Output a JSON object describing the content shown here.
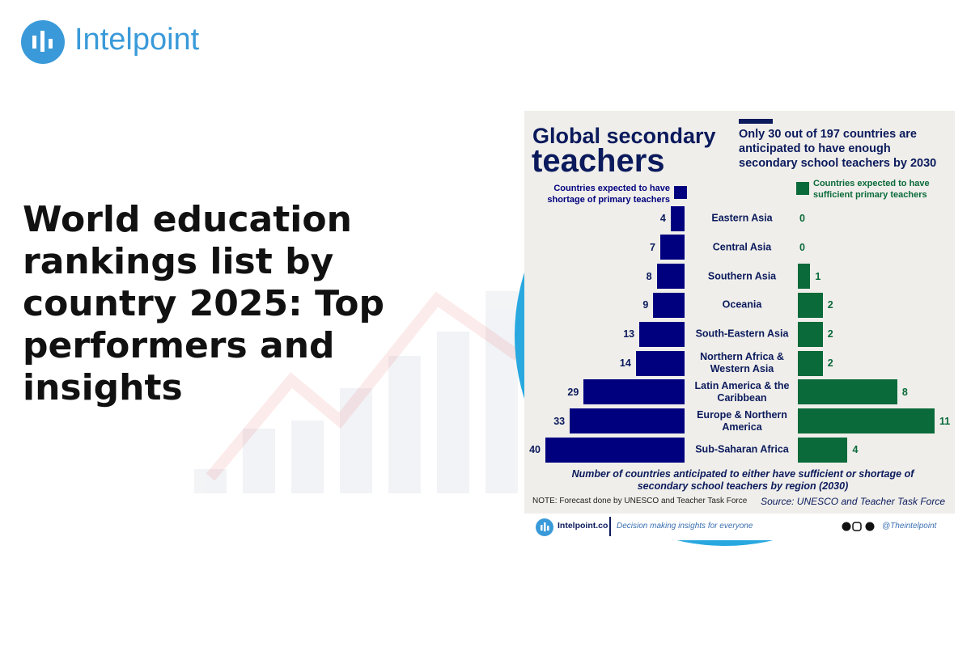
{
  "logo": "Intelpoint",
  "headline": "World education rankings list by country 2025: Top performers and insights",
  "chart_data": {
    "type": "butterfly",
    "title_lines": [
      "Global secondary",
      "teachers"
    ],
    "subtitle": "Only 30 out of 197 countries are anticipated to have enough secondary school teachers by 2030",
    "categories": [
      "Eastern Asia",
      "Central Asia",
      "Southern Asia",
      "Oceania",
      "South-Eastern Asia",
      "Northern Africa & Western Asia",
      "Latin America & the Caribbean",
      "Europe & Northern America",
      "Sub-Saharan Africa"
    ],
    "series": [
      {
        "name": "Countries expected to have shortage of primary teachers",
        "color": "#00007f",
        "values": [
          4,
          7,
          8,
          9,
          13,
          14,
          29,
          33,
          40
        ]
      },
      {
        "name": "Countries expected to have sufficient primary teachers",
        "color": "#0a6a3a",
        "values": [
          0,
          0,
          1,
          2,
          2,
          2,
          8,
          11,
          4
        ]
      }
    ],
    "caption": "Number of countries anticipated to either have sufficient or shortage of secondary school teachers by region (2030)",
    "note": "NOTE: Forecast done by UNESCO and Teacher Task Force",
    "source": "Source: UNESCO and Teacher Task Force",
    "footer": {
      "site": "Intelpoint.co",
      "tagline": "Decision making insights for everyone",
      "handle": "@Theintelpoint"
    }
  }
}
